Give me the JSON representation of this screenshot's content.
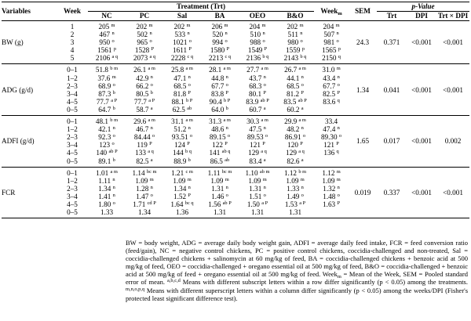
{
  "headers": {
    "variables": "Variables",
    "week": "Week",
    "treatment": "Treatment (Trt)",
    "nc": "NC",
    "pc": "PC",
    "sal": "Sal",
    "ba": "BA",
    "oeo": "OEO",
    "bo": "B&O",
    "weekm": "Week",
    "weekm_sub": "m",
    "sem": "SEM",
    "pvalue": "p-Value",
    "trt": "Trt",
    "dpi": "DPI",
    "trtxdpi": "Trt × DPI"
  },
  "bw": {
    "name": "BW (g)",
    "weeks": [
      "1",
      "2",
      "3",
      "4",
      "5"
    ],
    "nc": [
      [
        "205",
        "m"
      ],
      [
        "467",
        "n"
      ],
      [
        "950",
        "o"
      ],
      [
        "1561",
        "p"
      ],
      [
        "2106",
        "a q"
      ]
    ],
    "pc": [
      [
        "202",
        "m"
      ],
      [
        "502",
        "n"
      ],
      [
        "965",
        "o"
      ],
      [
        "1528",
        "P"
      ],
      [
        "2073",
        "a q"
      ]
    ],
    "sal": [
      [
        "202",
        "m"
      ],
      [
        "533",
        "n"
      ],
      [
        "1021",
        "o"
      ],
      [
        "1611",
        "P"
      ],
      [
        "2228",
        "c q"
      ]
    ],
    "ba": [
      [
        "206",
        "m"
      ],
      [
        "520",
        "n"
      ],
      [
        "994",
        "o"
      ],
      [
        "1580",
        "P"
      ],
      [
        "2213",
        "c q"
      ]
    ],
    "oeo": [
      [
        "204",
        "m"
      ],
      [
        "510",
        "n"
      ],
      [
        "988",
        "o"
      ],
      [
        "1549",
        "P"
      ],
      [
        "2136",
        "b q"
      ]
    ],
    "bo": [
      [
        "202",
        "m"
      ],
      [
        "511",
        "n"
      ],
      [
        "980",
        "o"
      ],
      [
        "1559",
        "p"
      ],
      [
        "2143",
        "b q"
      ]
    ],
    "weekm": [
      [
        "204",
        "m"
      ],
      [
        "507",
        "n"
      ],
      [
        "981",
        "o"
      ],
      [
        "1565",
        "p"
      ],
      [
        "2150",
        "q"
      ]
    ],
    "sem": "24.3",
    "trt": "0.371",
    "dpi": "<0.001",
    "inter": "<0.001"
  },
  "adg": {
    "name": "ADG (g/d)",
    "weeks": [
      "0–1",
      "1–2",
      "2–3",
      "3–4",
      "4–5",
      "0–5"
    ],
    "nc": [
      [
        "51.8",
        "b m"
      ],
      [
        "37.6",
        "m"
      ],
      [
        "68.9",
        "o"
      ],
      [
        "87.3",
        "b"
      ],
      [
        "77.7",
        "a P"
      ],
      [
        "64.7",
        "b"
      ]
    ],
    "pc": [
      [
        "26.1",
        "a m"
      ],
      [
        "42.9",
        "n"
      ],
      [
        "66.2",
        "o"
      ],
      [
        "80.5",
        "b"
      ],
      [
        "77.7",
        "a P"
      ],
      [
        "58.7",
        "a"
      ]
    ],
    "sal": [
      [
        "25.8",
        "a m"
      ],
      [
        "47.1",
        "n"
      ],
      [
        "68.5",
        "o"
      ],
      [
        "81.8",
        "P"
      ],
      [
        "88.1",
        "b P"
      ],
      [
        "62.5",
        "ab"
      ]
    ],
    "ba": [
      [
        "28.1",
        "a m"
      ],
      [
        "44.8",
        "n"
      ],
      [
        "67.7",
        "o"
      ],
      [
        "83.8",
        "P"
      ],
      [
        "90.4",
        "b P"
      ],
      [
        "64.0",
        "b"
      ]
    ],
    "oeo": [
      [
        "27.7",
        "a m"
      ],
      [
        "43.7",
        "n"
      ],
      [
        "68.3",
        "o"
      ],
      [
        "80.1",
        "P"
      ],
      [
        "83.9",
        "ab P"
      ],
      [
        "60.7",
        "a"
      ]
    ],
    "bo": [
      [
        "26.7",
        "a m"
      ],
      [
        "44.1",
        "n"
      ],
      [
        "68.5",
        "o"
      ],
      [
        "81.2",
        "P"
      ],
      [
        "83.5",
        "ab P"
      ],
      [
        "60.2",
        "a"
      ]
    ],
    "weekm": [
      [
        "31.0",
        "m"
      ],
      [
        "43.4",
        "n"
      ],
      [
        "67.7",
        "o"
      ],
      [
        "82.5",
        "P"
      ],
      [
        "83.6",
        "q"
      ],
      [
        "",
        ""
      ]
    ],
    "sem": "1.34",
    "trt": "0.041",
    "dpi": "<0.001",
    "inter": "<0.001"
  },
  "adfi": {
    "name": "ADFI (g/d)",
    "weeks": [
      "0–1",
      "1–2",
      "2–3",
      "3–4",
      "4–5",
      "0–5"
    ],
    "nc": [
      [
        "48.1",
        "b m"
      ],
      [
        "42.1",
        "n"
      ],
      [
        "92.3",
        "o"
      ],
      [
        "123",
        "o"
      ],
      [
        "140",
        "ab P"
      ],
      [
        "89.1",
        "b"
      ]
    ],
    "pc": [
      [
        "29.6",
        "a m"
      ],
      [
        "46.7",
        "n"
      ],
      [
        "84.44",
        "o"
      ],
      [
        "119",
        "P"
      ],
      [
        "133",
        "a q"
      ],
      [
        "82.5",
        "a"
      ]
    ],
    "sal": [
      [
        "31.1",
        "a m"
      ],
      [
        "51.2",
        "n"
      ],
      [
        "93.51",
        "o"
      ],
      [
        "124",
        "P"
      ],
      [
        "144",
        "b q"
      ],
      [
        "88.9",
        "b"
      ]
    ],
    "ba": [
      [
        "31.3",
        "a m"
      ],
      [
        "48.6",
        "n"
      ],
      [
        "89.15",
        "o"
      ],
      [
        "122",
        "P"
      ],
      [
        "141",
        "ab q"
      ],
      [
        "86.5",
        "ab"
      ]
    ],
    "oeo": [
      [
        "30.3",
        "a m"
      ],
      [
        "47.5",
        "n"
      ],
      [
        "89.53",
        "o"
      ],
      [
        "121",
        "P"
      ],
      [
        "129",
        "a q"
      ],
      [
        "83.4",
        "a"
      ]
    ],
    "bo": [
      [
        "29.9",
        "a m"
      ],
      [
        "48.2",
        "n"
      ],
      [
        "86.91",
        "o"
      ],
      [
        "120",
        "P"
      ],
      [
        "129",
        "a q"
      ],
      [
        "82.6",
        "a"
      ]
    ],
    "weekm": [
      [
        "33.4",
        ""
      ],
      [
        "47.4",
        "n"
      ],
      [
        "89.30",
        "o"
      ],
      [
        "121",
        "P"
      ],
      [
        "136",
        "q"
      ],
      [
        "",
        ""
      ]
    ],
    "sem": "1.65",
    "trt": "0.017",
    "dpi": "<0.001",
    "inter": "0.002"
  },
  "fcr": {
    "name": "FCR",
    "weeks": [
      "0–1",
      "1–2",
      "2–3",
      "3–4",
      "4–5",
      "0–5"
    ],
    "nc": [
      [
        "1.01",
        "a m"
      ],
      [
        "1.11",
        "n"
      ],
      [
        "1.34",
        "n"
      ],
      [
        "1.41",
        "n"
      ],
      [
        "1.80",
        "o"
      ],
      [
        "1.33",
        ""
      ]
    ],
    "pc": [
      [
        "1.14",
        "bc m"
      ],
      [
        "1.09",
        "m"
      ],
      [
        "1.28",
        "n"
      ],
      [
        "1.47",
        "o"
      ],
      [
        "1.71",
        "cd P"
      ],
      [
        "1.34",
        ""
      ]
    ],
    "sal": [
      [
        "1.21",
        "c m"
      ],
      [
        "1.09",
        "m"
      ],
      [
        "1.34",
        "n"
      ],
      [
        "1.52",
        "P"
      ],
      [
        "1.64",
        "bc q"
      ],
      [
        "1.36",
        ""
      ]
    ],
    "ba": [
      [
        "1.11",
        "bc m"
      ],
      [
        "1.09",
        "m"
      ],
      [
        "1.31",
        "n"
      ],
      [
        "1.46",
        "o"
      ],
      [
        "1.56",
        "ab P"
      ],
      [
        "1.31",
        ""
      ]
    ],
    "oeo": [
      [
        "1.10",
        "ab m"
      ],
      [
        "1.09",
        "m"
      ],
      [
        "1.31",
        "n"
      ],
      [
        "1.51",
        "o"
      ],
      [
        "1.50",
        "a P"
      ],
      [
        "1.31",
        ""
      ]
    ],
    "bo": [
      [
        "1.12",
        "b m"
      ],
      [
        "1.09",
        "m"
      ],
      [
        "1.33",
        "n"
      ],
      [
        "1.49",
        "o"
      ],
      [
        "1.53",
        "a P"
      ],
      [
        "1.31",
        ""
      ]
    ],
    "weekm": [
      [
        "1.12",
        "m"
      ],
      [
        "1.09",
        "m"
      ],
      [
        "1.32",
        "n"
      ],
      [
        "1.48",
        "o"
      ],
      [
        "1.63",
        "P"
      ],
      [
        "",
        ""
      ]
    ],
    "sem": "0.019",
    "trt": "0.337",
    "dpi": "<0.001",
    "inter": "<0.001"
  },
  "footnote": {
    "text": "BW = body weight, ADG = average daily body weight gain, ADFI = average daily feed intake, FCR = feed conversion ratio (feed/gain), NC = negative control chickens, PC = positive control chickens, coccidia-challenged and non-treated, Sal = coccidia-challenged chickens + salinomycin at 60 mg/kg of feed, BA = coccidia-challenged chickens + benzoic acid at 500 mg/kg of feed, OEO = coccidia-challenged + oregano essential oil at 500 mg/kg of feed, B&O = coccidia-challenged + benzoic acid at 500 mg/kg of feed + oregano essential oil at 500 mg/kg of feed. Week",
    "weekm_sub": "m",
    "text2": " = Mean of the Week, SEM = Pooled standard error of mean.",
    "sup1": "a,b,c,d",
    "text3": " Means with different subscript letters within a row differ significantly (p < 0.05) among the treatments.",
    "sup2": "m,n,o,p,q",
    "text4": " Means with different superscript letters within a column differ significantly (p < 0.05) among the weeks/DPI (Fisher's protected least significant difference test)."
  }
}
